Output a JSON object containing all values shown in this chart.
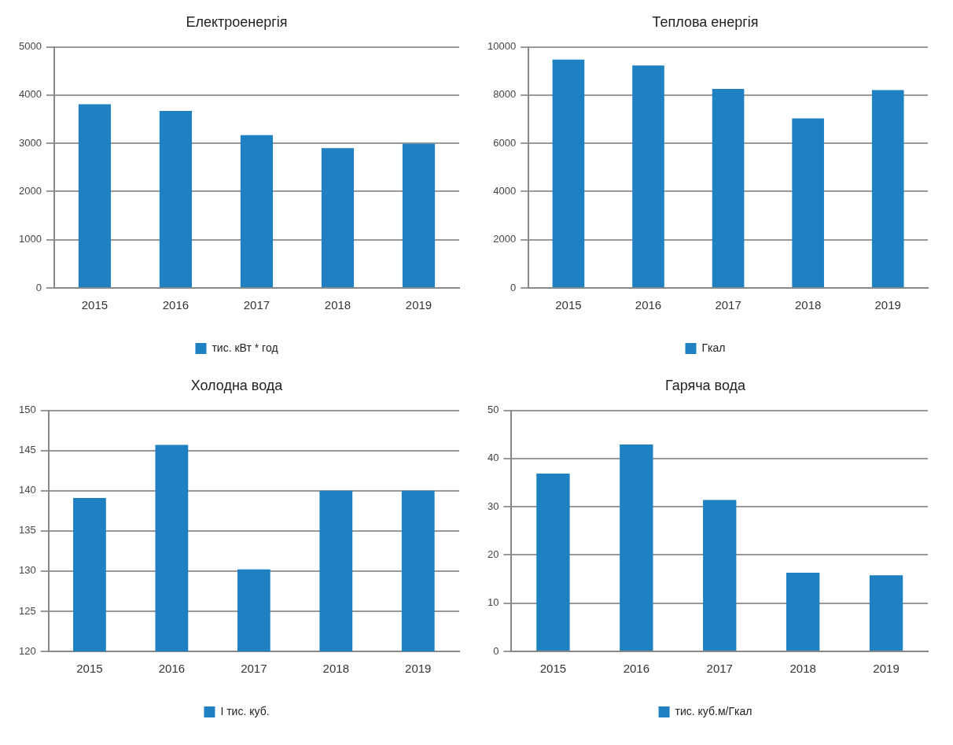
{
  "chart_data": [
    {
      "type": "bar",
      "title": "Електроенергія",
      "categories": [
        "2015",
        "2016",
        "2017",
        "2018",
        "2019"
      ],
      "series": [
        {
          "name": "тис. кВт * год",
          "color": "#1f81c1",
          "values": [
            3810,
            3670,
            3170,
            2900,
            2990
          ]
        }
      ],
      "ylim": [
        0,
        5000
      ],
      "yticks": [
        0,
        1000,
        2000,
        3000,
        4000,
        5000
      ],
      "grid": "y",
      "legend": "bottom"
    },
    {
      "type": "bar",
      "title": "Теплова енергія",
      "categories": [
        "2015",
        "2016",
        "2017",
        "2018",
        "2019"
      ],
      "series": [
        {
          "name": "Гкал",
          "color": "#1f81c1",
          "values": [
            9470,
            9230,
            8260,
            7030,
            8210
          ]
        }
      ],
      "ylim": [
        0,
        10000
      ],
      "yticks": [
        0,
        2000,
        4000,
        6000,
        8000,
        10000
      ],
      "grid": "y",
      "legend": "bottom"
    },
    {
      "type": "bar",
      "title": "Холодна вода",
      "categories": [
        "2015",
        "2016",
        "2017",
        "2018",
        "2019"
      ],
      "series": [
        {
          "name": "І тис. куб.",
          "color": "#1f81c1",
          "values": [
            139.1,
            145.7,
            130.2,
            140,
            140
          ]
        }
      ],
      "ylim": [
        120,
        150
      ],
      "yticks": [
        120,
        125,
        130,
        135,
        140,
        145,
        150
      ],
      "grid": "y",
      "legend": "bottom"
    },
    {
      "type": "bar",
      "title": "Гаряча вода",
      "categories": [
        "2015",
        "2016",
        "2017",
        "2018",
        "2019"
      ],
      "series": [
        {
          "name": "тис. куб.м/Гкал",
          "color": "#1f81c1",
          "values": [
            36.9,
            42.9,
            31.4,
            16.3,
            15.8
          ]
        }
      ],
      "ylim": [
        0,
        50
      ],
      "yticks": [
        0,
        10,
        20,
        30,
        40,
        50
      ],
      "grid": "y",
      "legend": "bottom"
    }
  ]
}
